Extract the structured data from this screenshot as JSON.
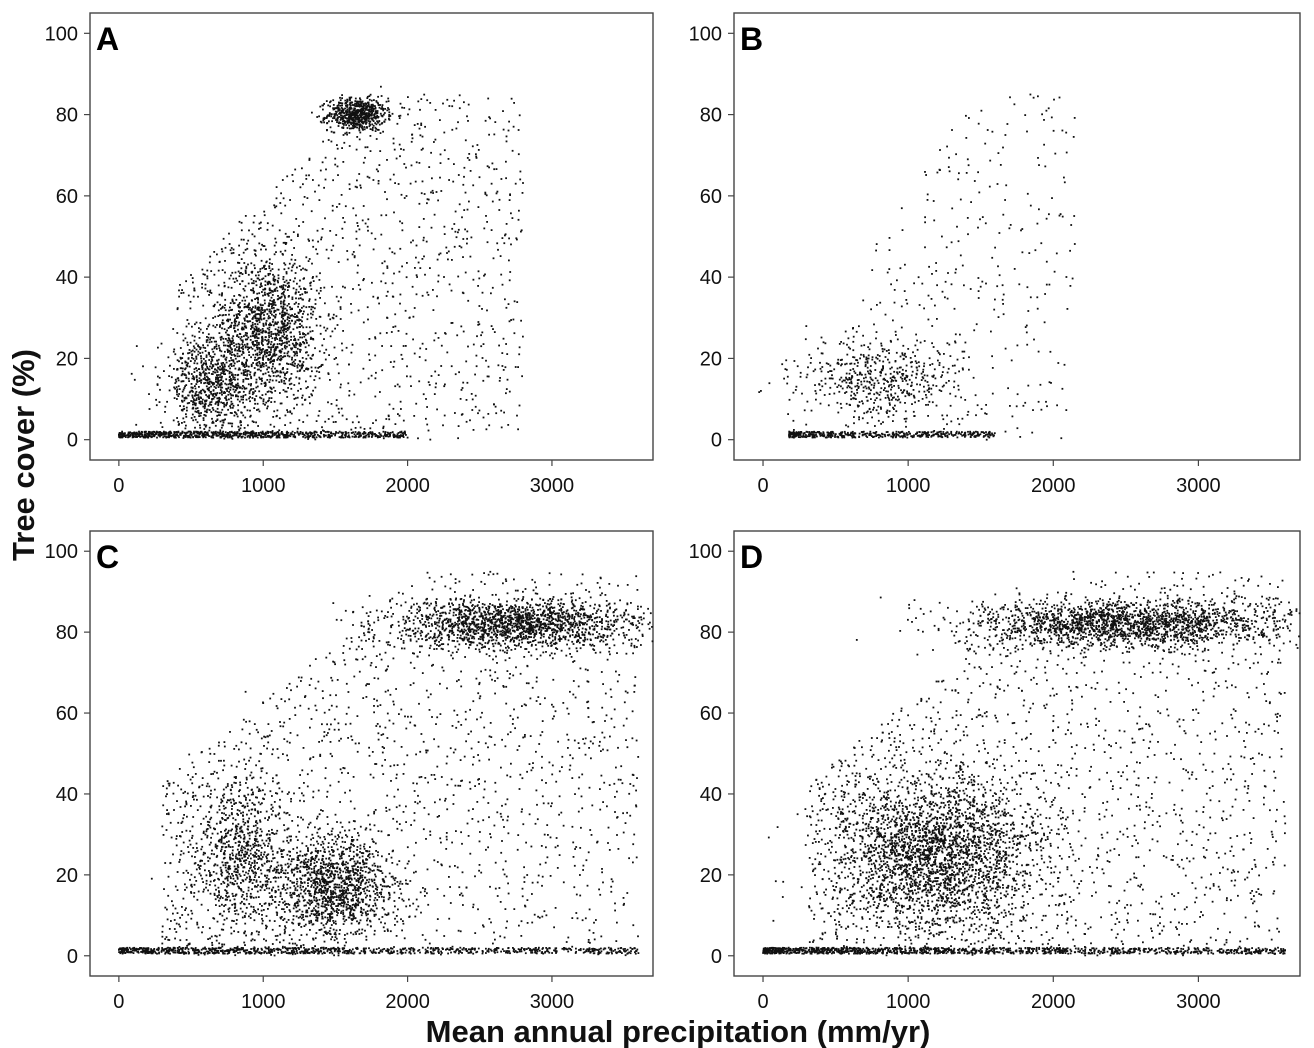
{
  "figure": {
    "ylabel": "Tree cover (%)",
    "xlabel": "Mean annual precipitation (mm/yr)"
  },
  "chart_data": [
    {
      "panel": "A",
      "type": "scatter",
      "xlim": [
        -200,
        3700
      ],
      "ylim": [
        -5,
        105
      ],
      "x_ticks": [
        0,
        1000,
        2000,
        3000
      ],
      "y_ticks": [
        0,
        20,
        40,
        60,
        80,
        100
      ],
      "grid": false,
      "clusters": [
        {
          "x": [
            0,
            2000
          ],
          "y": [
            0.5,
            2
          ],
          "n": 800,
          "shape": "flat"
        },
        {
          "x": [
            1450,
            1850
          ],
          "y": [
            76,
            84
          ],
          "n": 650,
          "shape": "blob"
        },
        {
          "x": [
            700,
            1400
          ],
          "y": [
            10,
            45
          ],
          "n": 1200,
          "shape": "blob"
        },
        {
          "x": [
            300,
            1000
          ],
          "y": [
            2,
            25
          ],
          "n": 700,
          "shape": "blob"
        },
        {
          "x": [
            400,
            2800
          ],
          "y": [
            0,
            85
          ],
          "n": 1200,
          "shape": "uniform"
        }
      ]
    },
    {
      "panel": "B",
      "type": "scatter",
      "xlim": [
        -200,
        3700
      ],
      "ylim": [
        -5,
        105
      ],
      "x_ticks": [
        0,
        1000,
        2000,
        3000
      ],
      "y_ticks": [
        0,
        20,
        40,
        60,
        80,
        100
      ],
      "grid": false,
      "clusters": [
        {
          "x": [
            180,
            1600
          ],
          "y": [
            0.5,
            2
          ],
          "n": 450,
          "shape": "flat"
        },
        {
          "x": [
            250,
            1400
          ],
          "y": [
            5,
            25
          ],
          "n": 520,
          "shape": "blob"
        },
        {
          "x": [
            600,
            2150
          ],
          "y": [
            0,
            85
          ],
          "n": 320,
          "shape": "uniform"
        }
      ]
    },
    {
      "panel": "C",
      "type": "scatter",
      "xlim": [
        -200,
        3700
      ],
      "ylim": [
        -5,
        105
      ],
      "x_ticks": [
        0,
        1000,
        2000,
        3000
      ],
      "y_ticks": [
        0,
        20,
        40,
        60,
        80,
        100
      ],
      "grid": false,
      "clusters": [
        {
          "x": [
            0,
            3600
          ],
          "y": [
            0.5,
            2
          ],
          "n": 900,
          "shape": "flat"
        },
        {
          "x": [
            1900,
            3600
          ],
          "y": [
            76,
            88
          ],
          "n": 1700,
          "shape": "blob"
        },
        {
          "x": [
            1100,
            1900
          ],
          "y": [
            5,
            30
          ],
          "n": 1200,
          "shape": "blob"
        },
        {
          "x": [
            500,
            1200
          ],
          "y": [
            5,
            45
          ],
          "n": 800,
          "shape": "blob"
        },
        {
          "x": [
            300,
            3600
          ],
          "y": [
            0,
            95
          ],
          "n": 1600,
          "shape": "uniform"
        }
      ]
    },
    {
      "panel": "D",
      "type": "scatter",
      "xlim": [
        -200,
        3700
      ],
      "ylim": [
        -5,
        105
      ],
      "x_ticks": [
        0,
        1000,
        2000,
        3000
      ],
      "y_ticks": [
        0,
        20,
        40,
        60,
        80,
        100
      ],
      "grid": false,
      "clusters": [
        {
          "x": [
            0,
            3600
          ],
          "y": [
            0.5,
            2
          ],
          "n": 1100,
          "shape": "flat"
        },
        {
          "x": [
            1400,
            3600
          ],
          "y": [
            76,
            88
          ],
          "n": 1900,
          "shape": "blob"
        },
        {
          "x": [
            500,
            1900
          ],
          "y": [
            5,
            45
          ],
          "n": 2600,
          "shape": "blob"
        },
        {
          "x": [
            300,
            3600
          ],
          "y": [
            0,
            95
          ],
          "n": 1700,
          "shape": "uniform"
        }
      ]
    }
  ]
}
